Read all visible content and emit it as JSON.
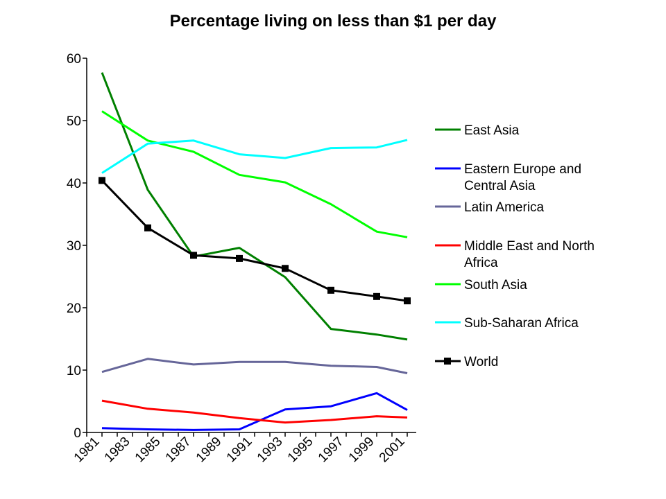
{
  "chart_data": {
    "type": "line",
    "title": "Percentage living on less than $1 per day",
    "xlabel": "",
    "ylabel": "",
    "x": [
      1981.5,
      1984.5,
      1987.5,
      1990.5,
      1993.5,
      1996.5,
      1999.5,
      2001.5
    ],
    "x_ticks": [
      "1981",
      "1983",
      "1985",
      "1987",
      "1989",
      "1991",
      "1993",
      "1995",
      "1997",
      "1999",
      "2001"
    ],
    "y_ticks": [
      "0",
      "10",
      "20",
      "30",
      "40",
      "50",
      "60"
    ],
    "xlim": [
      1981,
      2002
    ],
    "ylim": [
      0,
      60
    ],
    "grid": false,
    "legend_position": "right",
    "series": [
      {
        "name": "East Asia",
        "color": "#008000",
        "marker": "none",
        "values": [
          57.7,
          38.9,
          28.2,
          29.6,
          24.9,
          16.6,
          15.7,
          14.9
        ]
      },
      {
        "name": "Eastern Europe and Central Asia",
        "color": "#0000ff",
        "marker": "none",
        "values": [
          0.7,
          0.5,
          0.4,
          0.5,
          3.7,
          4.2,
          6.3,
          3.6
        ]
      },
      {
        "name": "Latin America",
        "color": "#666699",
        "marker": "none",
        "values": [
          9.7,
          11.8,
          10.9,
          11.3,
          11.3,
          10.7,
          10.5,
          9.5
        ]
      },
      {
        "name": "Middle East and North Africa",
        "color": "#ff0000",
        "marker": "none",
        "values": [
          5.1,
          3.8,
          3.2,
          2.3,
          1.6,
          2.0,
          2.6,
          2.4
        ]
      },
      {
        "name": "South Asia",
        "color": "#00ff00",
        "marker": "none",
        "values": [
          51.5,
          46.8,
          45.0,
          41.3,
          40.1,
          36.6,
          32.2,
          31.3
        ]
      },
      {
        "name": "Sub-Saharan Africa",
        "color": "#00ffff",
        "marker": "none",
        "values": [
          41.6,
          46.3,
          46.8,
          44.6,
          44.0,
          45.6,
          45.7,
          46.9
        ]
      },
      {
        "name": "World",
        "color": "#000000",
        "marker": "square",
        "values": [
          40.4,
          32.8,
          28.4,
          27.9,
          26.3,
          22.8,
          21.8,
          21.1
        ]
      }
    ],
    "legend_lines": [
      [
        "East Asia"
      ],
      [
        "Eastern Europe and",
        "Central Asia"
      ],
      [
        "Latin America"
      ],
      [
        "Middle East and North",
        "Africa"
      ],
      [
        "South Asia"
      ],
      [
        "Sub-Saharan Africa"
      ],
      [
        "World"
      ]
    ]
  }
}
